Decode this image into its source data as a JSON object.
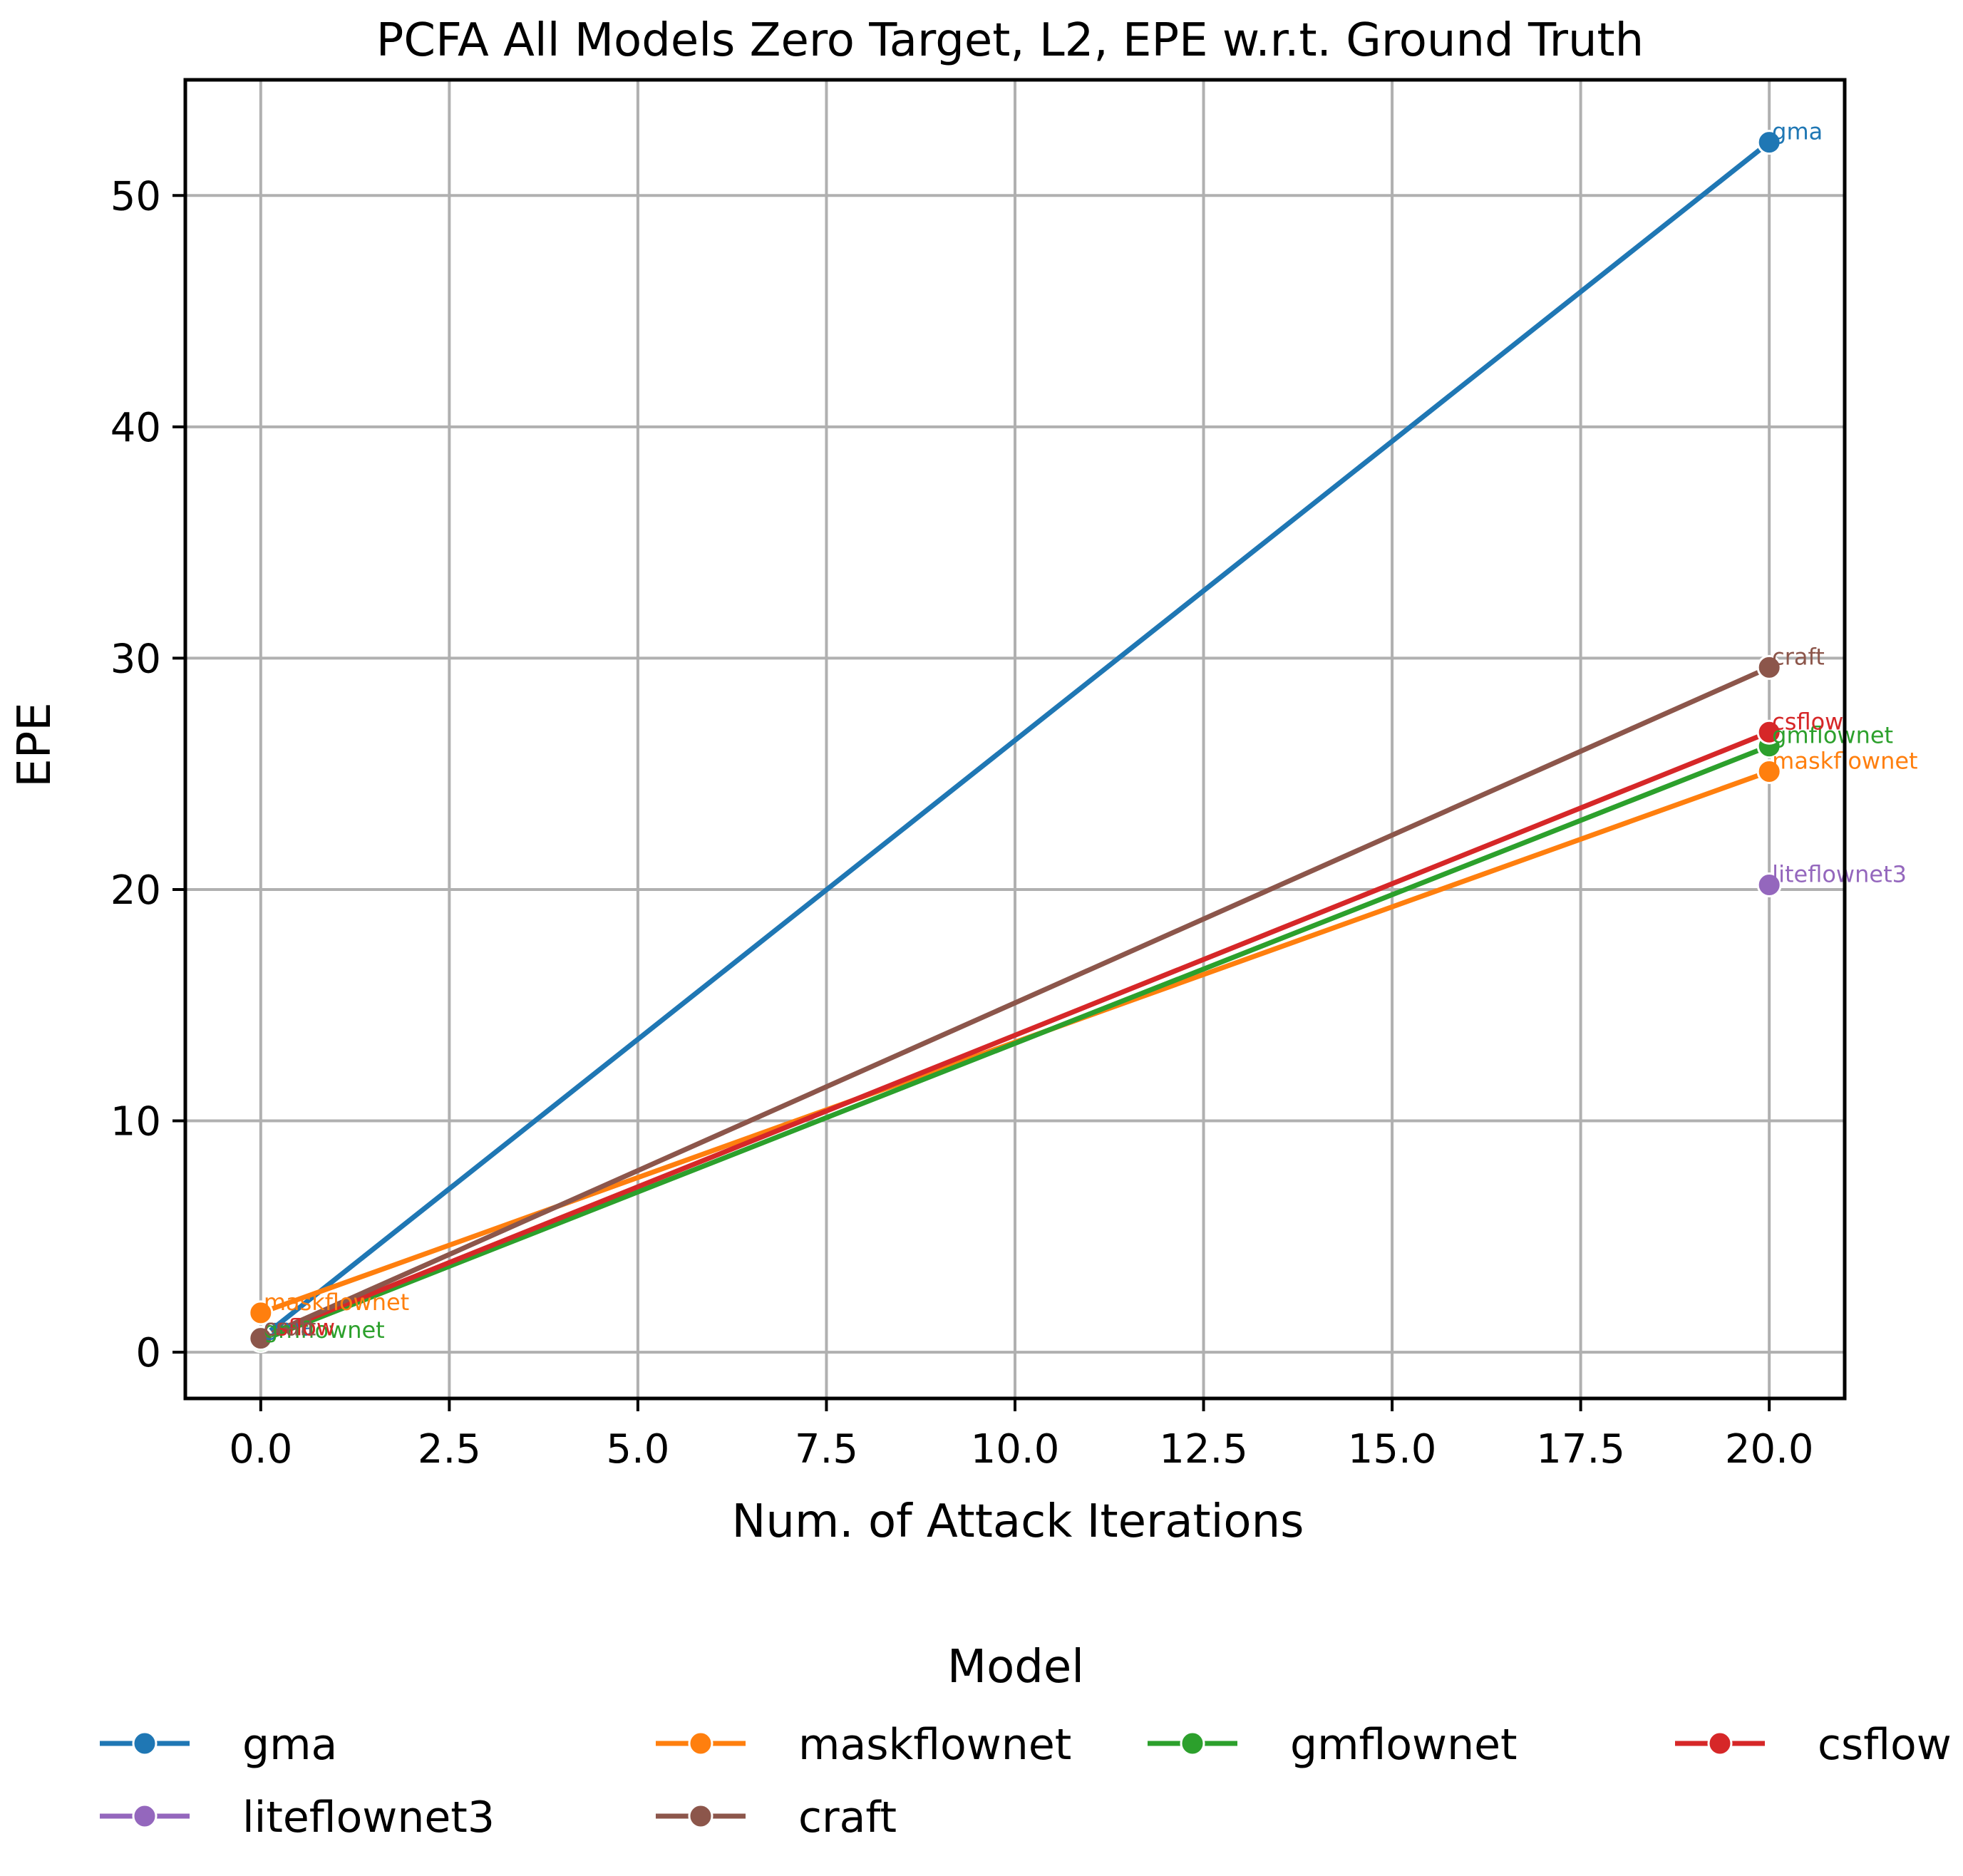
{
  "chart_data": {
    "type": "line",
    "title": "PCFA All Models Zero Target, L2, EPE w.r.t. Ground Truth",
    "xlabel": "Num. of Attack Iterations",
    "ylabel": "EPE",
    "xlim": [
      -1.0,
      21.0
    ],
    "ylim": [
      -2.0,
      55.0
    ],
    "xticks": [
      0.0,
      2.5,
      5.0,
      7.5,
      10.0,
      12.5,
      15.0,
      17.5,
      20.0
    ],
    "xtick_labels": [
      "0.0",
      "2.5",
      "5.0",
      "7.5",
      "10.0",
      "12.5",
      "15.0",
      "17.5",
      "20.0"
    ],
    "yticks": [
      0,
      10,
      20,
      30,
      40,
      50
    ],
    "ytick_labels": [
      "0",
      "10",
      "20",
      "30",
      "40",
      "50"
    ],
    "grid": true,
    "legend": {
      "title": "Model",
      "placement": "bottom-center",
      "columns": 4
    },
    "series": [
      {
        "name": "gma",
        "color": "#1f77b4",
        "x": [
          0,
          20
        ],
        "y": [
          0.6,
          52.3
        ],
        "point_labels": [
          "gma",
          "gma"
        ]
      },
      {
        "name": "maskflownet",
        "color": "#ff7f0e",
        "x": [
          0,
          20
        ],
        "y": [
          1.7,
          25.1
        ],
        "point_labels": [
          "maskflownet",
          "maskflownet"
        ]
      },
      {
        "name": "gmflownet",
        "color": "#2ca02c",
        "x": [
          0,
          20
        ],
        "y": [
          0.5,
          26.2
        ],
        "point_labels": [
          "gmflownet",
          "gmflownet"
        ]
      },
      {
        "name": "csflow",
        "color": "#d62728",
        "x": [
          0,
          20
        ],
        "y": [
          0.6,
          26.8
        ],
        "point_labels": [
          "csflow",
          "csflow"
        ]
      },
      {
        "name": "liteflownet3",
        "color": "#9467bd",
        "x": [
          20
        ],
        "y": [
          20.2
        ],
        "point_labels": [
          "liteflownet3"
        ]
      },
      {
        "name": "craft",
        "color": "#8c564b",
        "x": [
          0,
          20
        ],
        "y": [
          0.6,
          29.6
        ],
        "point_labels": [
          "craft",
          "craft"
        ]
      }
    ]
  }
}
